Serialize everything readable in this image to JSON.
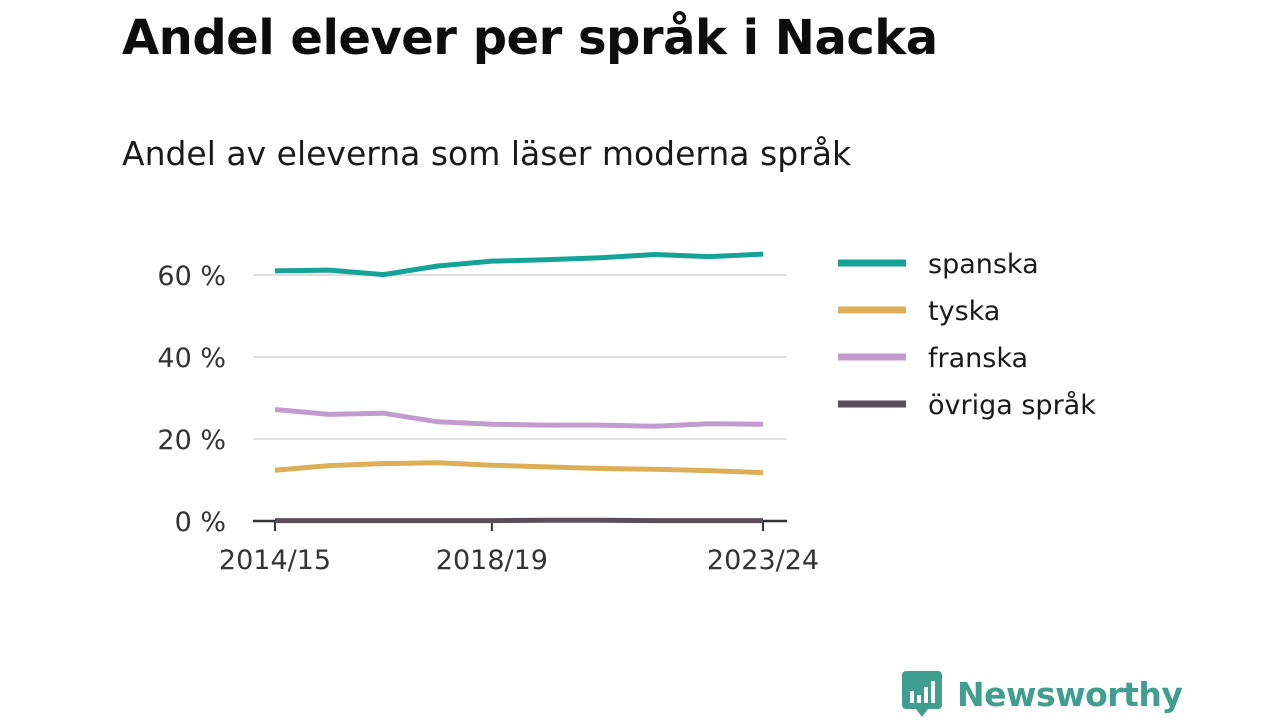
{
  "chart_data": {
    "type": "line",
    "title": "Andel elever per språk i Nacka",
    "subtitle": "Andel av eleverna som läser moderna språk",
    "x": [
      "2014/15",
      "2015/16",
      "2016/17",
      "2017/18",
      "2018/19",
      "2019/20",
      "2020/21",
      "2021/22",
      "2022/23",
      "2023/24"
    ],
    "x_tick_labels": [
      "2014/15",
      "2018/19",
      "2023/24"
    ],
    "y_ticks": [
      0,
      20,
      40,
      60
    ],
    "y_tick_labels": [
      "0 %",
      "20 %",
      "40 %",
      "60 %"
    ],
    "ylim": [
      0,
      70
    ],
    "ylabel": "",
    "xlabel": "",
    "grid": true,
    "legend_position": "right",
    "series": [
      {
        "name": "spanska",
        "color": "#15a398",
        "values": [
          61.0,
          61.2,
          60.1,
          62.2,
          63.4,
          63.7,
          64.2,
          65.0,
          64.5,
          65.1
        ]
      },
      {
        "name": "tyska",
        "color": "#dcae55",
        "values": [
          12.4,
          13.5,
          14.0,
          14.2,
          13.6,
          13.2,
          12.8,
          12.6,
          12.3,
          11.8
        ]
      },
      {
        "name": "franska",
        "color": "#c39ccf",
        "values": [
          27.2,
          26.0,
          26.3,
          24.2,
          23.6,
          23.4,
          23.4,
          23.1,
          23.7,
          23.6
        ]
      },
      {
        "name": "övriga språk",
        "color": "#5a4e59",
        "values": [
          0.1,
          0.1,
          0.1,
          0.1,
          0.1,
          0.2,
          0.2,
          0.1,
          0.1,
          0.1
        ]
      }
    ]
  },
  "brand": {
    "name": "Newsworthy",
    "color": "#3f9e8f",
    "icon": "newsworthy-logo-icon"
  }
}
